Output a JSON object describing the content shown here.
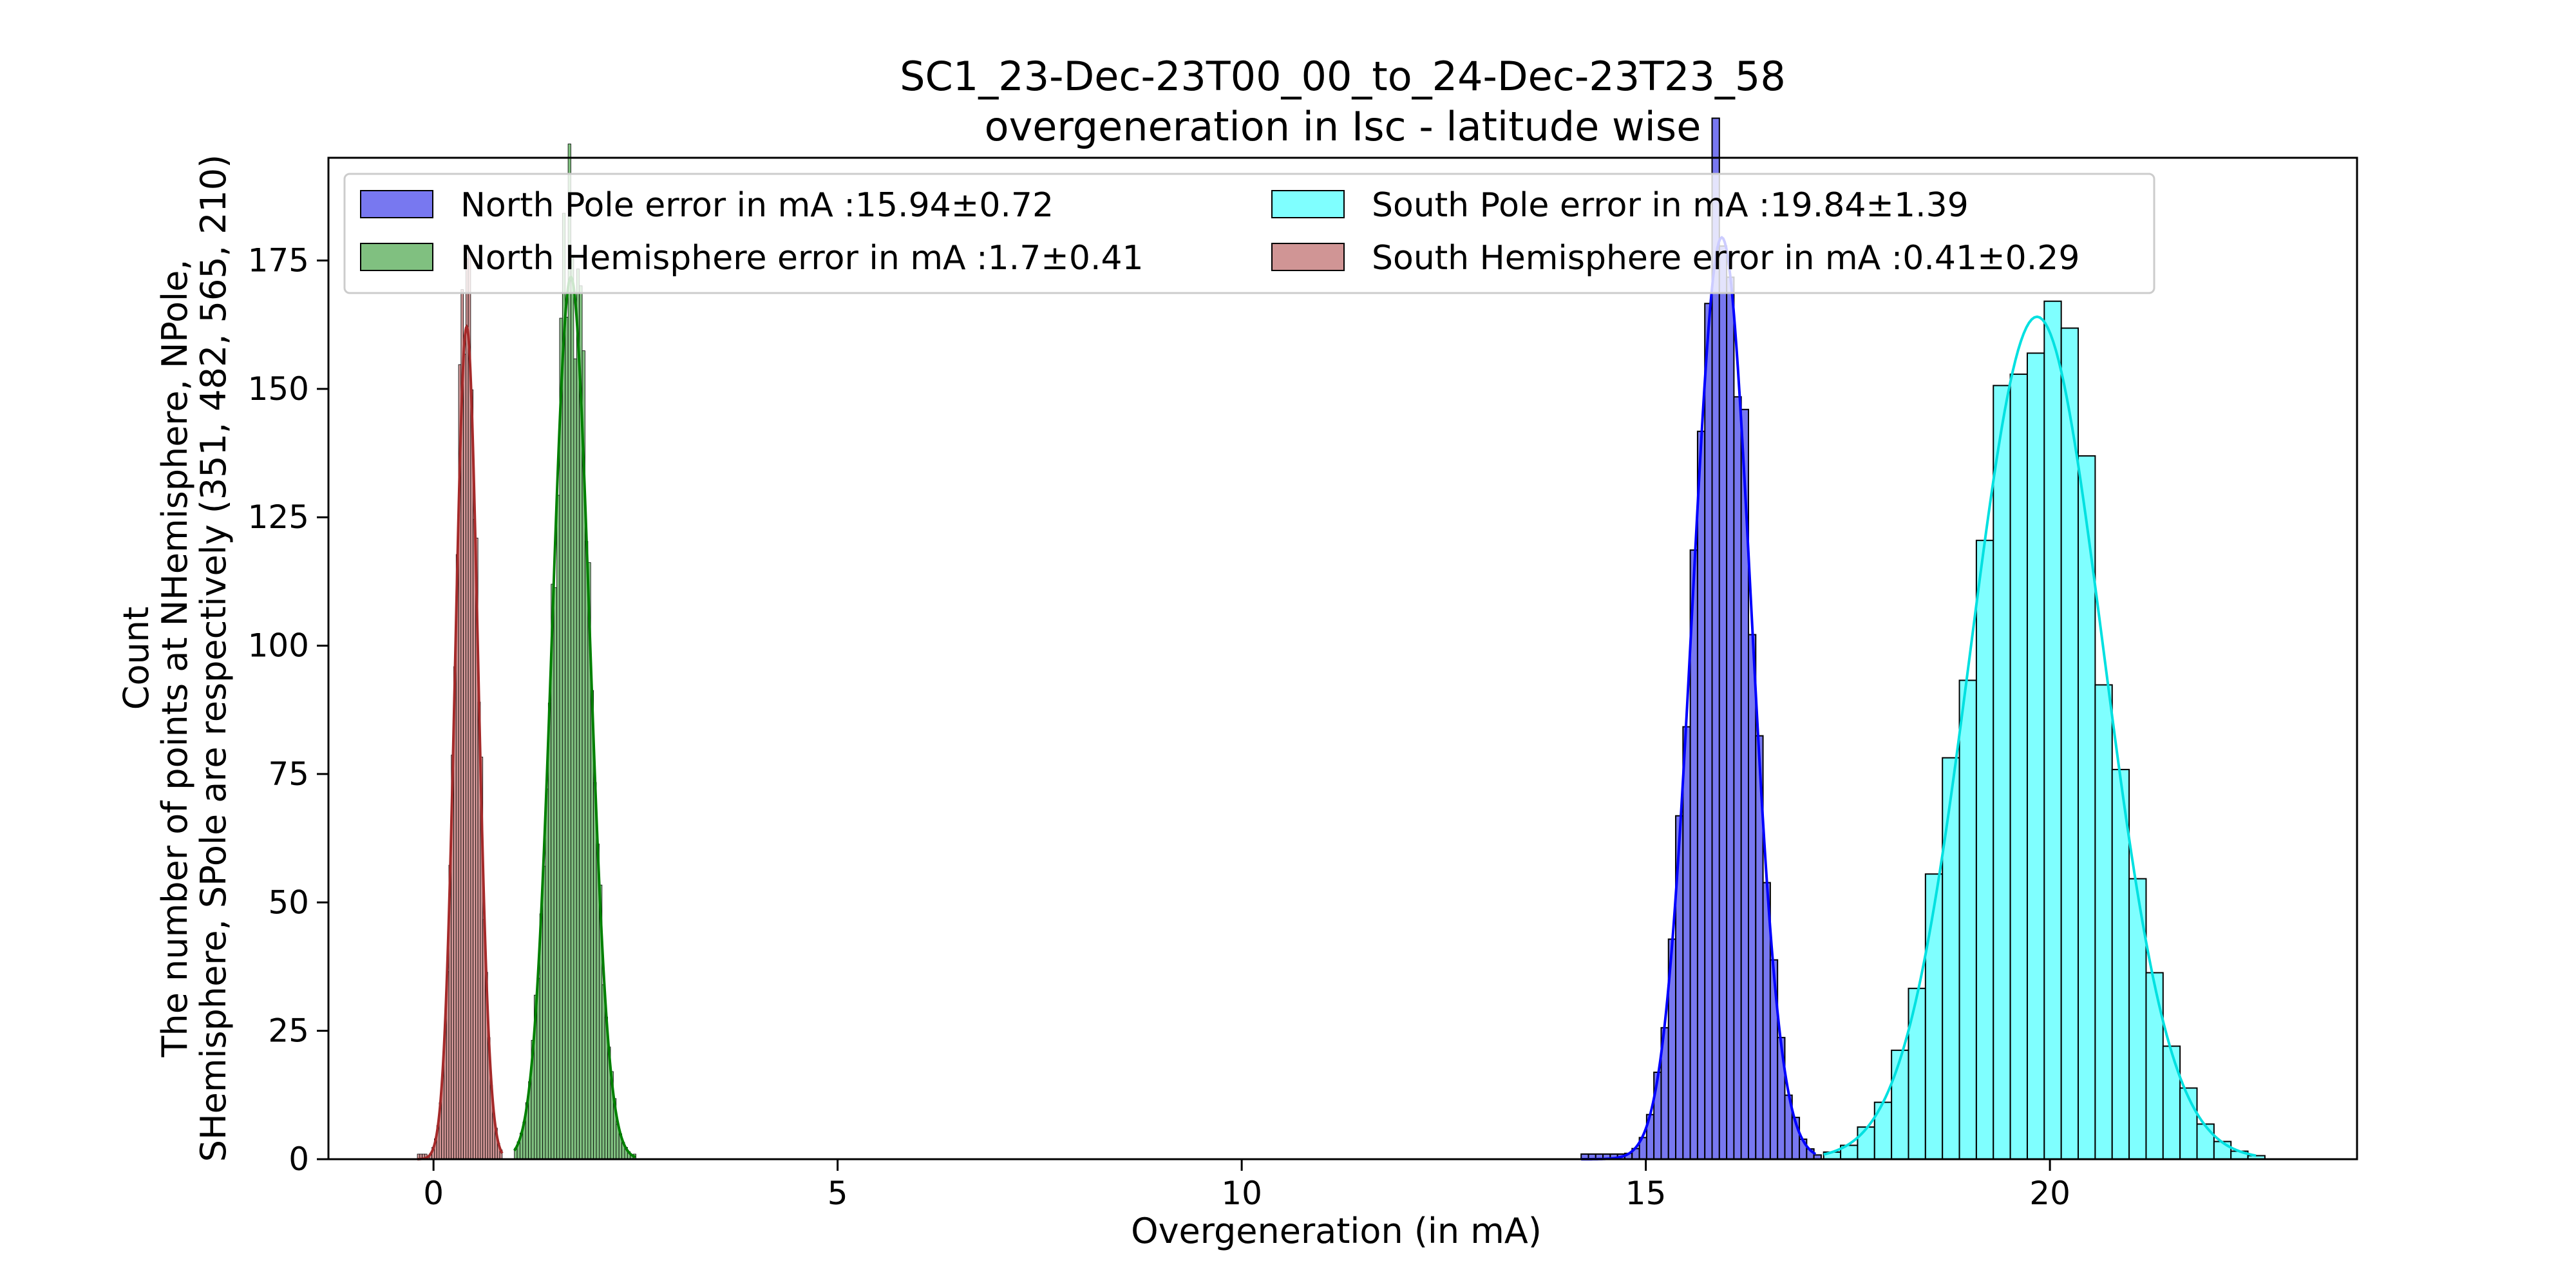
{
  "chart_data": {
    "type": "bar",
    "title": "SC1_23-Dec-23T00_00_to_24-Dec-23T23_58",
    "subtitle": "overgeneration in Isc - latitude wise",
    "xlabel": "Overgeneration (in mA)",
    "ylabel": "Count",
    "ylabel_line2": "The number of points at NHemisphere, NPole,",
    "ylabel_line3": "SHemisphere, SPole are respectively  (351, 482, 565, 210)",
    "xlim": [
      -1.3,
      23.8
    ],
    "ylim": [
      0,
      195
    ],
    "xticks": [
      0,
      5,
      10,
      15,
      20
    ],
    "yticks": [
      0,
      25,
      50,
      75,
      100,
      125,
      150,
      175
    ],
    "grid": false,
    "legend_position": "top",
    "series": [
      {
        "name": "North Pole error in mA :15.94±0.72",
        "color": "#0000ff",
        "fill": "#7878f0",
        "mean": 15.94,
        "std": 0.36,
        "binwidth": 0.09,
        "range": [
          14.2,
          17.1
        ],
        "peak": 186
      },
      {
        "name": "North Hemisphere error in mA :1.7±0.41",
        "color": "#008000",
        "fill": "#80c080",
        "mean": 1.7,
        "std": 0.23,
        "binwidth": 0.035,
        "range": [
          1.0,
          2.5
        ],
        "peak": 178
      },
      {
        "name": "South Pole error in mA :19.84±1.39",
        "color": "#00e0e0",
        "fill": "#7fffff",
        "mean": 19.84,
        "std": 0.82,
        "binwidth": 0.21,
        "range": [
          17.2,
          22.55
        ],
        "peak": 170
      },
      {
        "name": "South Hemisphere error in mA :0.41±0.29",
        "color": "#a52a2a",
        "fill": "#d09595",
        "mean": 0.41,
        "std": 0.14,
        "binwidth": 0.03,
        "range": [
          -0.2,
          0.85
        ],
        "peak": 168
      }
    ]
  }
}
